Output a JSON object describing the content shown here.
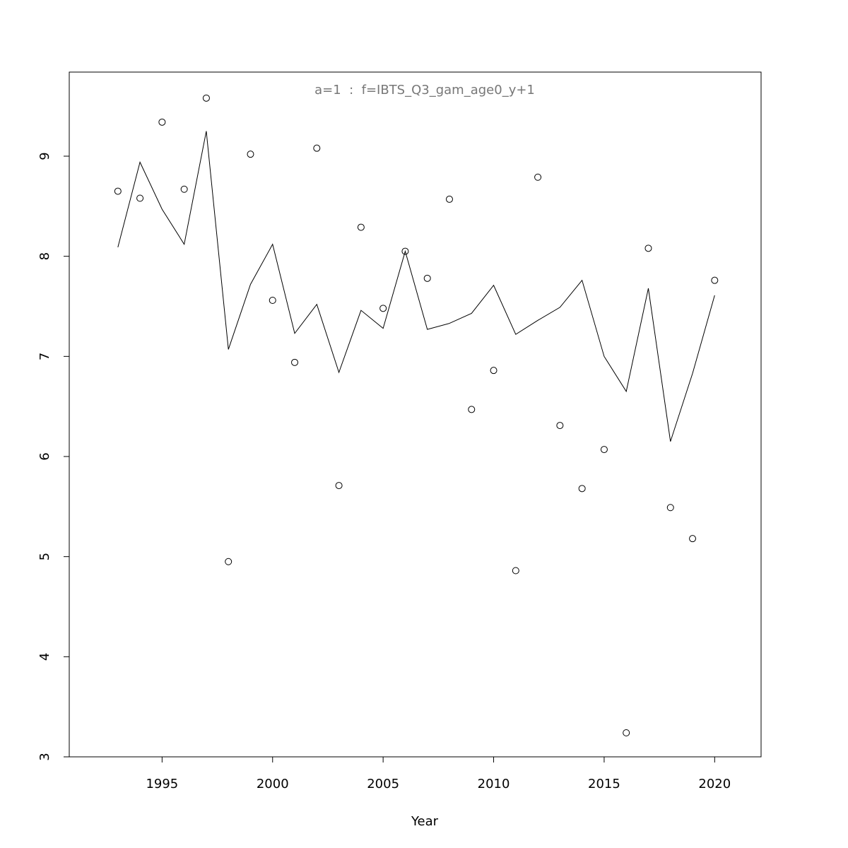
{
  "chart_data": {
    "type": "line",
    "title": "a=1  :  f=IBTS_Q3_gam_age0_y+1",
    "xlabel": "Year",
    "x": [
      1993,
      1994,
      1995,
      1996,
      1997,
      1998,
      1999,
      2000,
      2001,
      2002,
      2003,
      2004,
      2005,
      2006,
      2007,
      2008,
      2009,
      2010,
      2011,
      2012,
      2013,
      2014,
      2015,
      2016,
      2017,
      2018,
      2019,
      2020
    ],
    "series": [
      {
        "mode": "markers",
        "color": "#000000",
        "values": [
          8.65,
          8.58,
          9.34,
          8.67,
          9.58,
          4.95,
          9.02,
          7.56,
          6.94,
          9.08,
          5.71,
          8.29,
          7.48,
          8.05,
          7.78,
          8.57,
          6.47,
          6.86,
          4.86,
          8.79,
          6.31,
          5.68,
          6.07,
          3.24,
          8.08,
          5.49,
          5.18,
          7.76
        ]
      },
      {
        "mode": "lines",
        "color": "#000000",
        "values": [
          8.09,
          8.94,
          8.47,
          8.12,
          9.25,
          7.07,
          7.72,
          8.12,
          7.23,
          7.52,
          6.84,
          7.46,
          7.28,
          8.05,
          7.27,
          7.33,
          7.43,
          7.71,
          7.22,
          7.36,
          7.49,
          7.76,
          7.0,
          6.65,
          7.68,
          6.15,
          6.83,
          7.61
        ]
      }
    ],
    "xlim": [
      1990.8,
      2022.1
    ],
    "ylim": [
      3,
      9.84
    ],
    "xticks": [
      1995,
      2000,
      2005,
      2010,
      2015,
      2020
    ],
    "yticks": [
      3,
      4,
      5,
      6,
      7,
      8,
      9
    ]
  }
}
